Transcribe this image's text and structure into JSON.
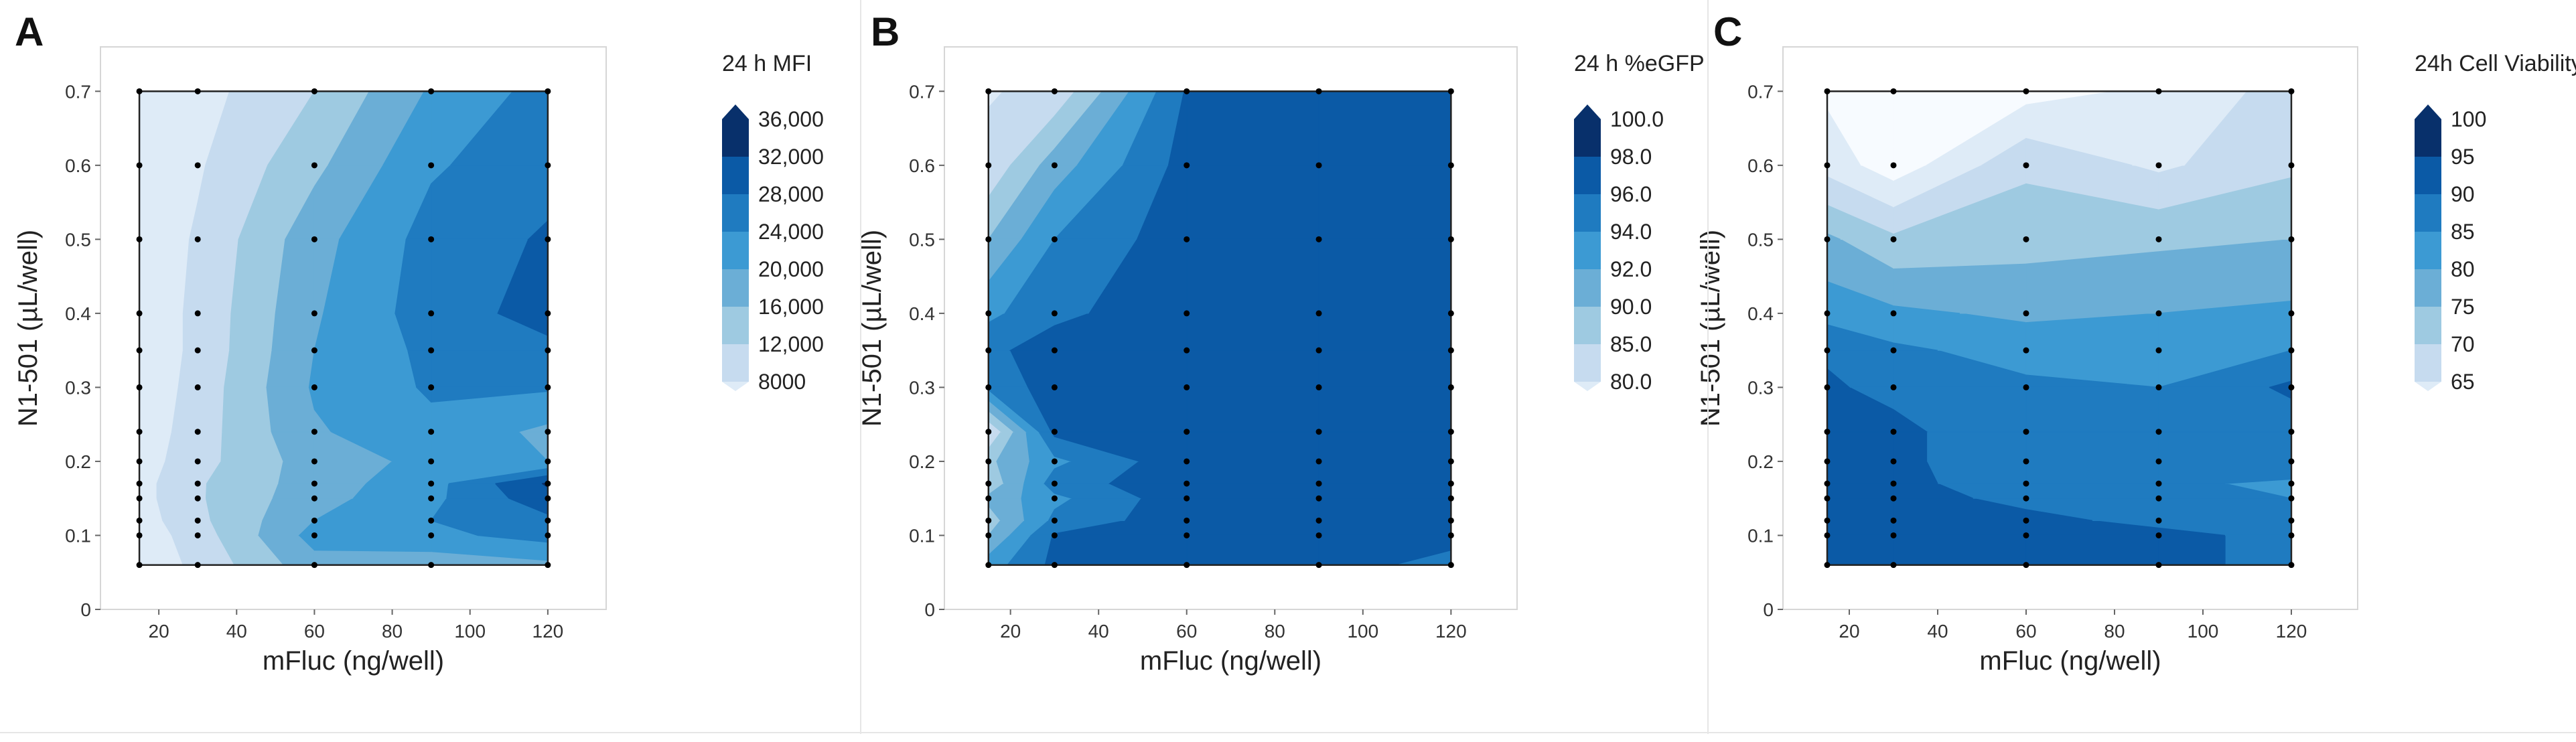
{
  "chart_data": [
    {
      "type": "heatmap",
      "panel_letter": "A",
      "xlabel": "mFluc (ng/well)",
      "ylabel": "N1-501 (µL/well)",
      "legend_title": "24 h MFI",
      "x_ticks": [
        "20",
        "40",
        "60",
        "80",
        "100",
        "120"
      ],
      "y_ticks": [
        "0",
        "0.1",
        "0.2",
        "0.3",
        "0.4",
        "0.5",
        "0.6",
        "0.7"
      ],
      "xlim": [
        5,
        135
      ],
      "ylim": [
        0,
        0.76
      ],
      "levels": [
        8000,
        12000,
        16000,
        20000,
        24000,
        28000,
        32000,
        36000
      ],
      "level_labels": [
        "8000",
        "12,000",
        "16,000",
        "20,000",
        "24,000",
        "28,000",
        "32,000",
        "36,000"
      ],
      "x": [
        15,
        30,
        60,
        90,
        120
      ],
      "y": [
        0.06,
        0.1,
        0.12,
        0.15,
        0.17,
        0.2,
        0.24,
        0.3,
        0.35,
        0.4,
        0.5,
        0.6,
        0.7
      ],
      "z": [
        [
          9000,
          13000,
          22500,
          21500,
          23000
        ],
        [
          9500,
          14000,
          25500,
          27000,
          29500
        ],
        [
          10000,
          15000,
          24000,
          28000,
          31000
        ],
        [
          10500,
          15500,
          22500,
          27000,
          34500
        ],
        [
          10500,
          15500,
          22000,
          26500,
          36500
        ],
        [
          10000,
          14500,
          22000,
          25000,
          24000
        ],
        [
          9500,
          14000,
          23500,
          27000,
          23000
        ],
        [
          9000,
          13500,
          24500,
          28500,
          28500
        ],
        [
          9000,
          13000,
          24000,
          29000,
          31000
        ],
        [
          9000,
          13000,
          23500,
          30000,
          33500
        ],
        [
          9000,
          12500,
          22500,
          29500,
          32500
        ],
        [
          9000,
          11500,
          19000,
          27500,
          30500
        ],
        [
          8500,
          10500,
          16000,
          24500,
          29500
        ]
      ],
      "sample_points": [
        [
          15,
          0.06
        ],
        [
          15,
          0.1
        ],
        [
          15,
          0.12
        ],
        [
          15,
          0.15
        ],
        [
          15,
          0.17
        ],
        [
          15,
          0.2
        ],
        [
          15,
          0.24
        ],
        [
          15,
          0.3
        ],
        [
          15,
          0.35
        ],
        [
          15,
          0.4
        ],
        [
          15,
          0.5
        ],
        [
          15,
          0.6
        ],
        [
          15,
          0.7
        ],
        [
          30,
          0.06
        ],
        [
          30,
          0.1
        ],
        [
          30,
          0.12
        ],
        [
          30,
          0.15
        ],
        [
          30,
          0.17
        ],
        [
          30,
          0.2
        ],
        [
          30,
          0.24
        ],
        [
          30,
          0.3
        ],
        [
          30,
          0.35
        ],
        [
          30,
          0.4
        ],
        [
          30,
          0.5
        ],
        [
          30,
          0.6
        ],
        [
          30,
          0.7
        ],
        [
          60,
          0.06
        ],
        [
          60,
          0.1
        ],
        [
          60,
          0.12
        ],
        [
          60,
          0.15
        ],
        [
          60,
          0.17
        ],
        [
          60,
          0.2
        ],
        [
          60,
          0.24
        ],
        [
          60,
          0.3
        ],
        [
          60,
          0.35
        ],
        [
          60,
          0.4
        ],
        [
          60,
          0.5
        ],
        [
          60,
          0.6
        ],
        [
          60,
          0.7
        ],
        [
          90,
          0.06
        ],
        [
          90,
          0.1
        ],
        [
          90,
          0.12
        ],
        [
          90,
          0.15
        ],
        [
          90,
          0.17
        ],
        [
          90,
          0.2
        ],
        [
          90,
          0.24
        ],
        [
          90,
          0.3
        ],
        [
          90,
          0.35
        ],
        [
          90,
          0.4
        ],
        [
          90,
          0.5
        ],
        [
          90,
          0.6
        ],
        [
          90,
          0.7
        ],
        [
          120,
          0.06
        ],
        [
          120,
          0.1
        ],
        [
          120,
          0.12
        ],
        [
          120,
          0.15
        ],
        [
          120,
          0.17
        ],
        [
          120,
          0.2
        ],
        [
          120,
          0.24
        ],
        [
          120,
          0.3
        ],
        [
          120,
          0.35
        ],
        [
          120,
          0.4
        ],
        [
          120,
          0.5
        ],
        [
          120,
          0.6
        ],
        [
          120,
          0.7
        ]
      ]
    },
    {
      "type": "heatmap",
      "panel_letter": "B",
      "xlabel": "mFluc (ng/well)",
      "ylabel": "N1-501 (µL/well)",
      "legend_title": "24 h %eGFP",
      "x_ticks": [
        "20",
        "40",
        "60",
        "80",
        "100",
        "120"
      ],
      "y_ticks": [
        "0",
        "0.1",
        "0.2",
        "0.3",
        "0.4",
        "0.5",
        "0.6",
        "0.7"
      ],
      "xlim": [
        5,
        135
      ],
      "ylim": [
        0,
        0.76
      ],
      "levels": [
        80.0,
        85.0,
        90.0,
        92.0,
        94.0,
        96.0,
        98.0,
        100.0
      ],
      "level_labels": [
        "80.0",
        "85.0",
        "90.0",
        "92.0",
        "94.0",
        "96.0",
        "98.0",
        "100.0"
      ],
      "x": [
        15,
        30,
        60,
        90,
        120
      ],
      "y": [
        0.06,
        0.1,
        0.12,
        0.15,
        0.17,
        0.2,
        0.24,
        0.3,
        0.35,
        0.4,
        0.5,
        0.6,
        0.7
      ],
      "z": [
        [
          95.0,
          98.5,
          99.2,
          99.3,
          97.0
        ],
        [
          92.0,
          98.2,
          99.3,
          99.5,
          99.0
        ],
        [
          91.0,
          96.5,
          99.3,
          99.5,
          99.5
        ],
        [
          92.5,
          95.5,
          99.3,
          99.5,
          99.5
        ],
        [
          90.5,
          97.0,
          99.4,
          99.6,
          99.5
        ],
        [
          91.5,
          95.5,
          99.4,
          99.6,
          99.6
        ],
        [
          88.0,
          98.5,
          99.4,
          99.6,
          99.6
        ],
        [
          96.5,
          99.0,
          99.5,
          99.6,
          99.6
        ],
        [
          97.5,
          99.0,
          99.5,
          99.6,
          99.6
        ],
        [
          95.5,
          97.5,
          99.4,
          99.6,
          99.6
        ],
        [
          92.0,
          96.0,
          99.2,
          99.5,
          99.6
        ],
        [
          88.5,
          93.0,
          98.8,
          99.4,
          99.5
        ],
        [
          84.0,
          88.5,
          98.2,
          99.2,
          99.4
        ]
      ],
      "sample_points": [
        [
          15,
          0.06
        ],
        [
          15,
          0.1
        ],
        [
          15,
          0.12
        ],
        [
          15,
          0.15
        ],
        [
          15,
          0.17
        ],
        [
          15,
          0.2
        ],
        [
          15,
          0.24
        ],
        [
          15,
          0.3
        ],
        [
          15,
          0.35
        ],
        [
          15,
          0.4
        ],
        [
          15,
          0.5
        ],
        [
          15,
          0.6
        ],
        [
          15,
          0.7
        ],
        [
          30,
          0.06
        ],
        [
          30,
          0.1
        ],
        [
          30,
          0.12
        ],
        [
          30,
          0.15
        ],
        [
          30,
          0.17
        ],
        [
          30,
          0.2
        ],
        [
          30,
          0.24
        ],
        [
          30,
          0.3
        ],
        [
          30,
          0.35
        ],
        [
          30,
          0.4
        ],
        [
          30,
          0.5
        ],
        [
          30,
          0.6
        ],
        [
          30,
          0.7
        ],
        [
          60,
          0.06
        ],
        [
          60,
          0.1
        ],
        [
          60,
          0.12
        ],
        [
          60,
          0.15
        ],
        [
          60,
          0.17
        ],
        [
          60,
          0.2
        ],
        [
          60,
          0.24
        ],
        [
          60,
          0.3
        ],
        [
          60,
          0.35
        ],
        [
          60,
          0.4
        ],
        [
          60,
          0.5
        ],
        [
          60,
          0.6
        ],
        [
          60,
          0.7
        ],
        [
          90,
          0.06
        ],
        [
          90,
          0.1
        ],
        [
          90,
          0.12
        ],
        [
          90,
          0.15
        ],
        [
          90,
          0.17
        ],
        [
          90,
          0.2
        ],
        [
          90,
          0.24
        ],
        [
          90,
          0.3
        ],
        [
          90,
          0.35
        ],
        [
          90,
          0.4
        ],
        [
          90,
          0.5
        ],
        [
          90,
          0.6
        ],
        [
          90,
          0.7
        ],
        [
          120,
          0.06
        ],
        [
          120,
          0.1
        ],
        [
          120,
          0.12
        ],
        [
          120,
          0.15
        ],
        [
          120,
          0.17
        ],
        [
          120,
          0.2
        ],
        [
          120,
          0.24
        ],
        [
          120,
          0.3
        ],
        [
          120,
          0.35
        ],
        [
          120,
          0.4
        ],
        [
          120,
          0.5
        ],
        [
          120,
          0.6
        ],
        [
          120,
          0.7
        ]
      ]
    },
    {
      "type": "heatmap",
      "panel_letter": "C",
      "xlabel": "mFluc (ng/well)",
      "ylabel": "N1-501 (µL/well)",
      "legend_title": "24h Cell Viability",
      "x_ticks": [
        "20",
        "40",
        "60",
        "80",
        "100",
        "120"
      ],
      "y_ticks": [
        "0",
        "0.1",
        "0.2",
        "0.3",
        "0.4",
        "0.5",
        "0.6",
        "0.7"
      ],
      "xlim": [
        5,
        135
      ],
      "ylim": [
        0,
        0.76
      ],
      "levels": [
        65,
        70,
        75,
        80,
        85,
        90,
        95,
        100
      ],
      "level_labels": [
        "65",
        "70",
        "75",
        "80",
        "85",
        "90",
        "95",
        "100"
      ],
      "x": [
        15,
        30,
        60,
        90,
        120
      ],
      "y": [
        0.06,
        0.1,
        0.12,
        0.15,
        0.17,
        0.2,
        0.24,
        0.3,
        0.35,
        0.4,
        0.5,
        0.6,
        0.7
      ],
      "z": [
        [
          97.0,
          97.0,
          97.0,
          97.0,
          93.0
        ],
        [
          97.5,
          97.0,
          97.0,
          96.0,
          94.0
        ],
        [
          97.5,
          97.0,
          96.0,
          94.0,
          92.0
        ],
        [
          97.5,
          96.5,
          94.0,
          92.0,
          90.0
        ],
        [
          97.0,
          96.0,
          93.0,
          91.0,
          89.0
        ],
        [
          96.5,
          96.0,
          92.0,
          91.0,
          94.0
        ],
        [
          96.0,
          96.0,
          92.0,
          91.0,
          92.0
        ],
        [
          95.5,
          94.0,
          91.0,
          90.0,
          96.0
        ],
        [
          94.5,
          91.0,
          88.0,
          88.0,
          90.0
        ],
        [
          88.0,
          86.0,
          84.0,
          85.0,
          86.0
        ],
        [
          81.0,
          76.0,
          78.0,
          79.0,
          80.0
        ],
        [
          68.0,
          62.0,
          74.0,
          69.0,
          74.0
        ],
        [
          64.0,
          64.0,
          63.0,
          66.0,
          72.0
        ]
      ],
      "sample_points": [
        [
          15,
          0.06
        ],
        [
          15,
          0.1
        ],
        [
          15,
          0.12
        ],
        [
          15,
          0.15
        ],
        [
          15,
          0.17
        ],
        [
          15,
          0.2
        ],
        [
          15,
          0.24
        ],
        [
          15,
          0.3
        ],
        [
          15,
          0.35
        ],
        [
          15,
          0.4
        ],
        [
          15,
          0.5
        ],
        [
          15,
          0.6
        ],
        [
          15,
          0.7
        ],
        [
          30,
          0.06
        ],
        [
          30,
          0.1
        ],
        [
          30,
          0.12
        ],
        [
          30,
          0.15
        ],
        [
          30,
          0.17
        ],
        [
          30,
          0.2
        ],
        [
          30,
          0.24
        ],
        [
          30,
          0.3
        ],
        [
          30,
          0.35
        ],
        [
          30,
          0.4
        ],
        [
          30,
          0.5
        ],
        [
          30,
          0.6
        ],
        [
          30,
          0.7
        ],
        [
          60,
          0.06
        ],
        [
          60,
          0.1
        ],
        [
          60,
          0.12
        ],
        [
          60,
          0.15
        ],
        [
          60,
          0.17
        ],
        [
          60,
          0.2
        ],
        [
          60,
          0.24
        ],
        [
          60,
          0.3
        ],
        [
          60,
          0.35
        ],
        [
          60,
          0.4
        ],
        [
          60,
          0.5
        ],
        [
          60,
          0.6
        ],
        [
          60,
          0.7
        ],
        [
          90,
          0.06
        ],
        [
          90,
          0.1
        ],
        [
          90,
          0.12
        ],
        [
          90,
          0.15
        ],
        [
          90,
          0.17
        ],
        [
          90,
          0.2
        ],
        [
          90,
          0.24
        ],
        [
          90,
          0.3
        ],
        [
          90,
          0.35
        ],
        [
          90,
          0.4
        ],
        [
          90,
          0.5
        ],
        [
          90,
          0.6
        ],
        [
          90,
          0.7
        ],
        [
          120,
          0.06
        ],
        [
          120,
          0.1
        ],
        [
          120,
          0.12
        ],
        [
          120,
          0.15
        ],
        [
          120,
          0.17
        ],
        [
          120,
          0.2
        ],
        [
          120,
          0.24
        ],
        [
          120,
          0.3
        ],
        [
          120,
          0.35
        ],
        [
          120,
          0.4
        ],
        [
          120,
          0.5
        ],
        [
          120,
          0.6
        ],
        [
          120,
          0.7
        ]
      ]
    }
  ],
  "palette": [
    "#f7fbff",
    "#deebf7",
    "#c6dbef",
    "#9ecae1",
    "#6baed6",
    "#3c9ad3",
    "#1f7bc0",
    "#0b5aa6",
    "#08306b"
  ]
}
